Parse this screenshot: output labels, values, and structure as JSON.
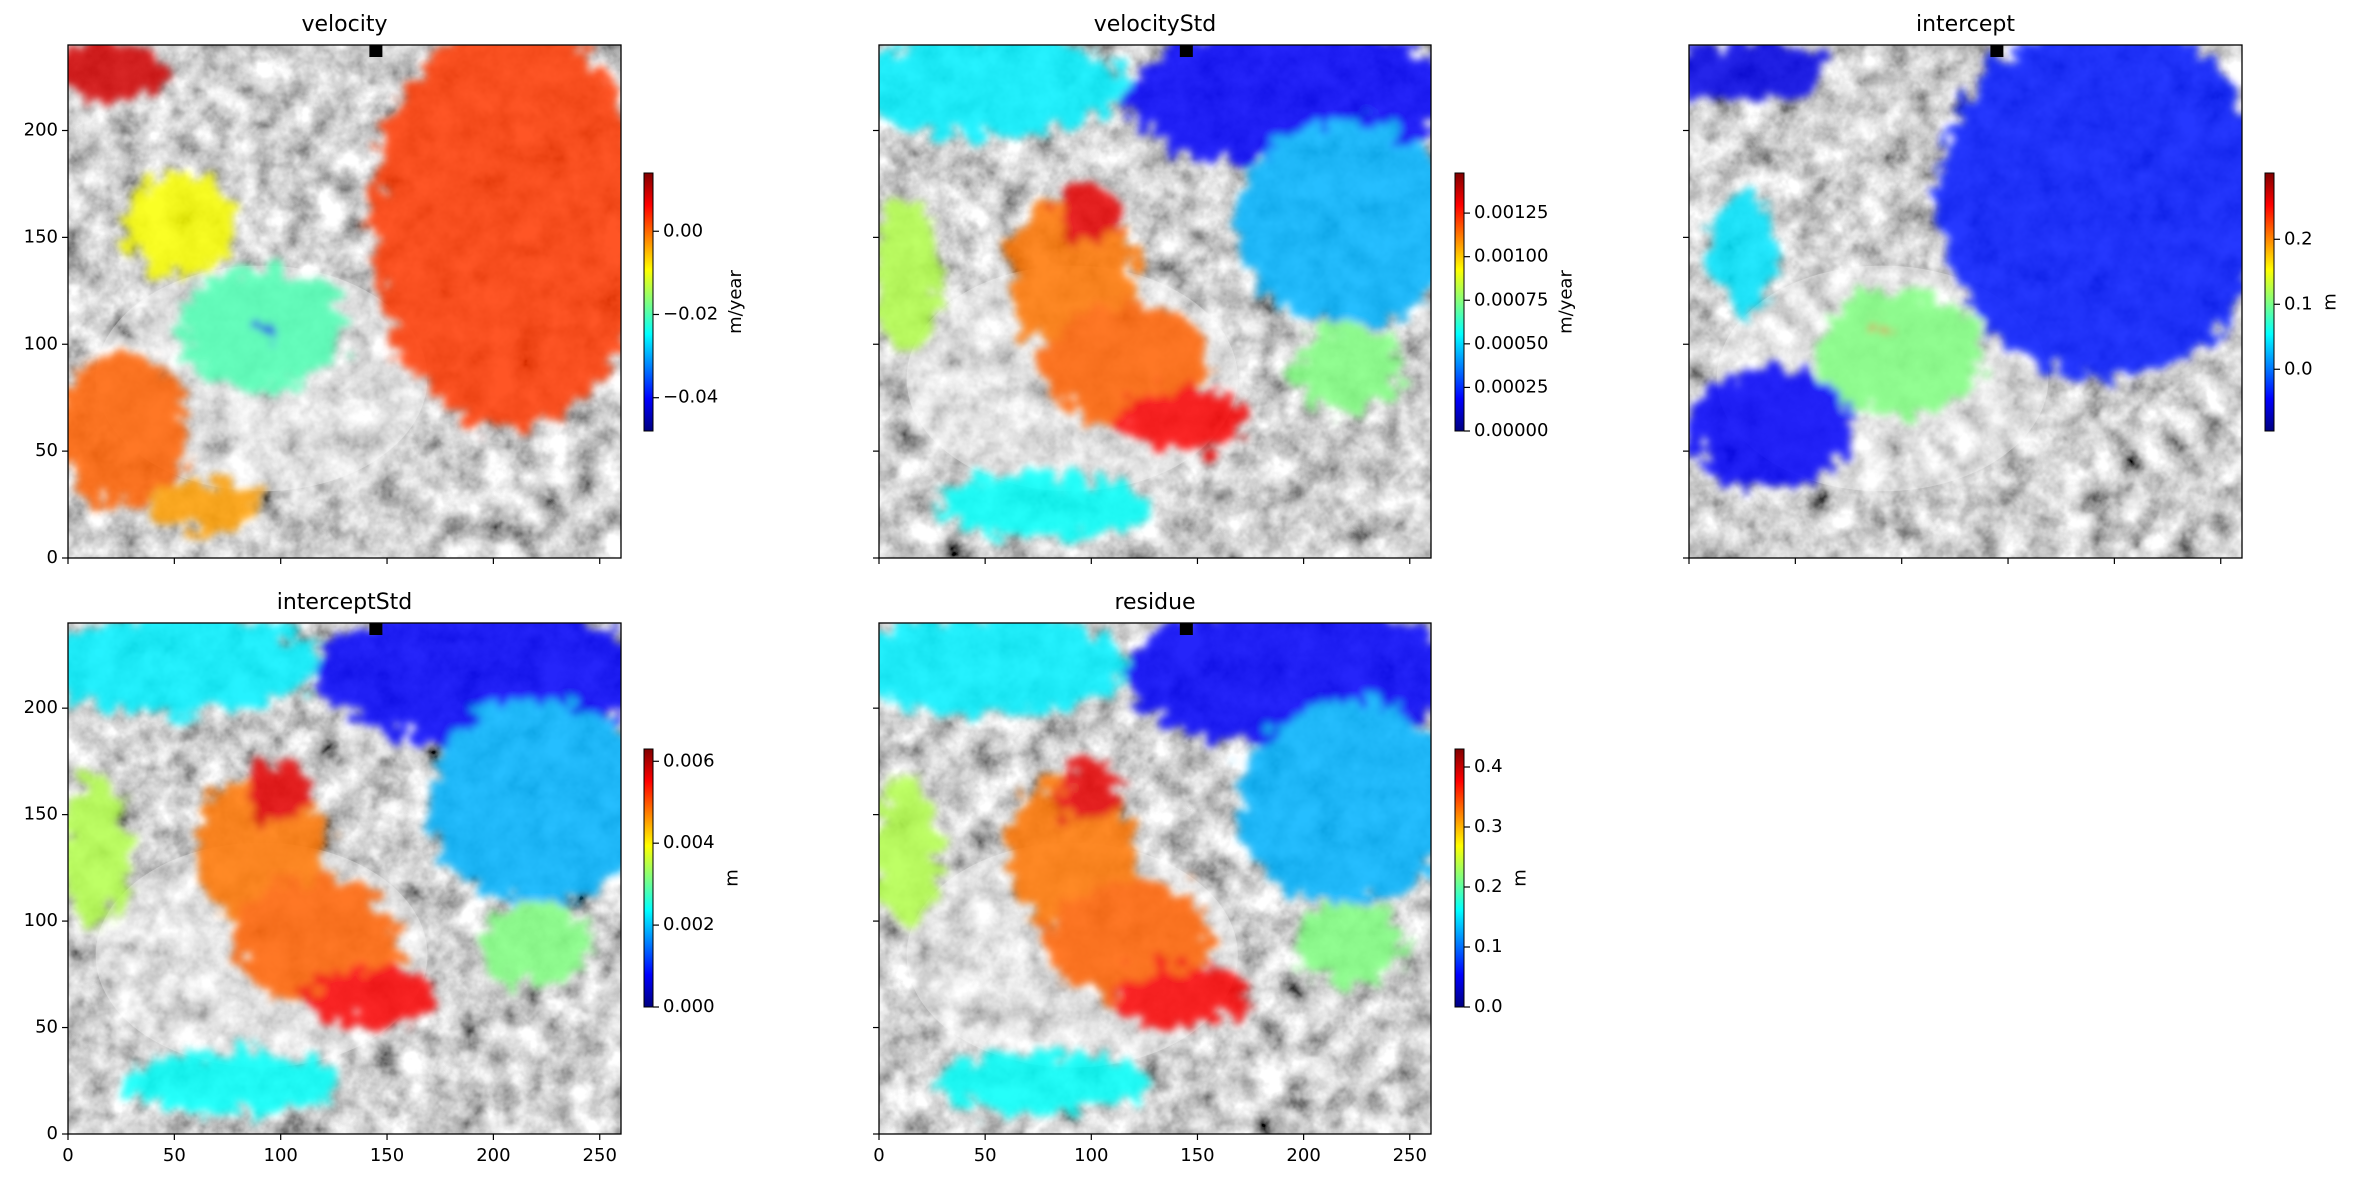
{
  "chart_data": [
    {
      "type": "image",
      "title": "velocity",
      "xlim": [
        0,
        260
      ],
      "ylim": [
        0,
        240
      ],
      "xticks": [
        0,
        50,
        100,
        150,
        200,
        250
      ],
      "yticks": [
        0,
        50,
        100,
        150,
        200
      ],
      "show_xticklabels": false,
      "show_yticklabels": true,
      "colormap": "jet",
      "colorbar": {
        "label": "m/year",
        "clim": [
          -0.048,
          0.014
        ],
        "ticks": [
          {
            "value": -0.04,
            "label": "−0.04"
          },
          {
            "value": -0.02,
            "label": "−0.02"
          },
          {
            "value": 0,
            "label": "0.00"
          }
        ]
      }
    },
    {
      "type": "image",
      "title": "velocityStd",
      "xlim": [
        0,
        260
      ],
      "ylim": [
        0,
        240
      ],
      "xticks": [
        0,
        50,
        100,
        150,
        200,
        250
      ],
      "yticks": [
        0,
        50,
        100,
        150,
        200
      ],
      "show_xticklabels": false,
      "show_yticklabels": false,
      "colormap": "jet",
      "colorbar": {
        "label": "m/year",
        "clim": [
          0,
          0.00148
        ],
        "ticks": [
          {
            "value": 0,
            "label": "0.00000"
          },
          {
            "value": 0.00025,
            "label": "0.00025"
          },
          {
            "value": 0.0005,
            "label": "0.00050"
          },
          {
            "value": 0.00075,
            "label": "0.00075"
          },
          {
            "value": 0.001,
            "label": "0.00100"
          },
          {
            "value": 0.00125,
            "label": "0.00125"
          }
        ]
      }
    },
    {
      "type": "image",
      "title": "intercept",
      "xlim": [
        0,
        260
      ],
      "ylim": [
        0,
        240
      ],
      "xticks": [
        0,
        50,
        100,
        150,
        200,
        250
      ],
      "yticks": [
        0,
        50,
        100,
        150,
        200
      ],
      "show_xticklabels": false,
      "show_yticklabels": false,
      "colormap": "jet",
      "colorbar": {
        "label": "m",
        "clim": [
          -0.095,
          0.302
        ],
        "ticks": [
          {
            "value": 0,
            "label": "0.0"
          },
          0.1,
          0.2
        ]
      }
    },
    {
      "type": "image",
      "title": "interceptStd",
      "xlim": [
        0,
        260
      ],
      "ylim": [
        0,
        240
      ],
      "xticks": [
        0,
        50,
        100,
        150,
        200,
        250
      ],
      "yticks": [
        0,
        50,
        100,
        150,
        200
      ],
      "show_xticklabels": true,
      "show_yticklabels": true,
      "colormap": "jet",
      "colorbar": {
        "label": "m",
        "clim": [
          0,
          0.0063
        ],
        "ticks": [
          {
            "value": 0,
            "label": "0.000"
          },
          0.002,
          0.004,
          0.006
        ]
      }
    },
    {
      "type": "image",
      "title": "residue",
      "xlim": [
        0,
        260
      ],
      "ylim": [
        0,
        240
      ],
      "xticks": [
        0,
        50,
        100,
        150,
        200,
        250
      ],
      "yticks": [
        0,
        50,
        100,
        150,
        200
      ],
      "show_xticklabels": true,
      "show_yticklabels": false,
      "colormap": "jet",
      "colorbar": {
        "label": "m",
        "clim": [
          0,
          0.43
        ],
        "ticks": [
          {
            "value": 0,
            "label": "0.0"
          },
          0.1,
          0.2,
          0.3,
          0.4
        ]
      }
    }
  ]
}
